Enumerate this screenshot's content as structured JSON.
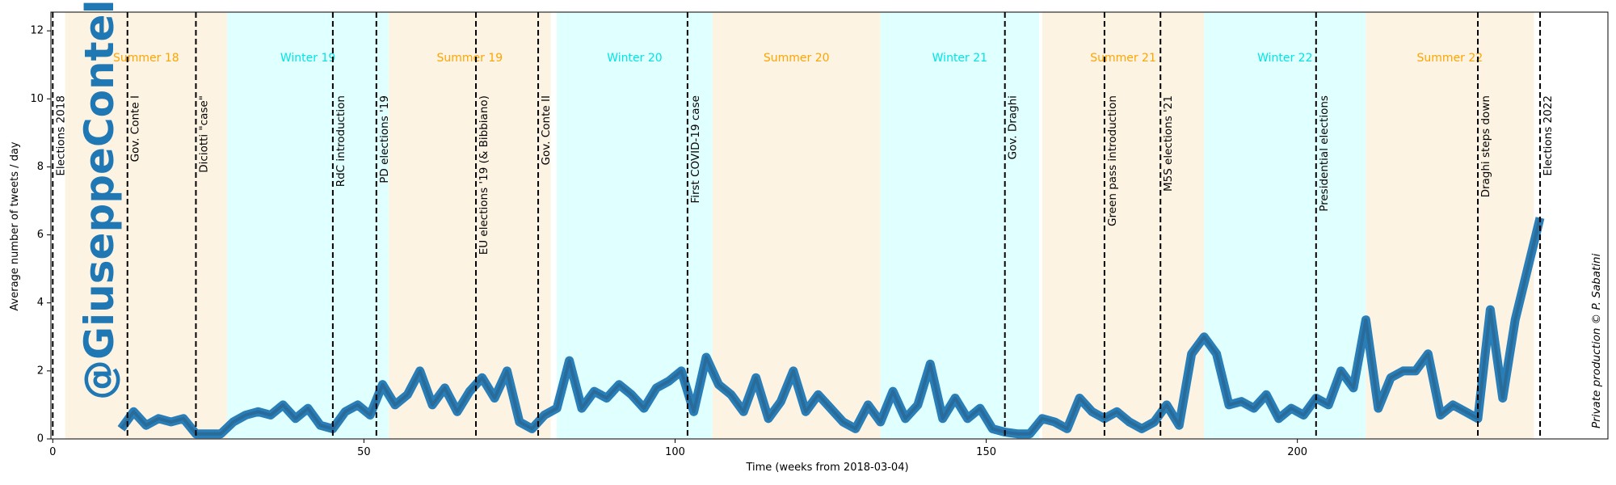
{
  "chart_data": {
    "type": "line",
    "xlabel": "Time (weeks from 2018-03-04)",
    "ylabel": "Average number of tweets / day",
    "watermark": "@GiuseppeConteIT",
    "credit": "Private production © P. Sabatini",
    "color": "#1f77b4",
    "xlim": [
      -0.3,
      249.9
    ],
    "ylim": [
      0,
      12.55
    ],
    "xticks": [
      0,
      50,
      100,
      150,
      200
    ],
    "yticks": [
      0,
      2,
      4,
      6,
      8,
      10,
      12
    ],
    "periods": [
      {
        "label": "Summer 18",
        "start": 2,
        "end": 28,
        "color": "#fdf3e3",
        "text_color": "#ffa500"
      },
      {
        "label": "Winter 19",
        "start": 28,
        "end": 54,
        "color": "#e0ffff",
        "text_color": "#00e5e5"
      },
      {
        "label": "Summer 19",
        "start": 54,
        "end": 80,
        "color": "#fdf3e3",
        "text_color": "#ffa500"
      },
      {
        "label": "Winter 20",
        "start": 81,
        "end": 106,
        "color": "#e0ffff",
        "text_color": "#00e5e5"
      },
      {
        "label": "Summer 20",
        "start": 106,
        "end": 133,
        "color": "#fdf3e3",
        "text_color": "#ffa500"
      },
      {
        "label": "Winter 21",
        "start": 133,
        "end": 158.5,
        "color": "#e0ffff",
        "text_color": "#00e5e5"
      },
      {
        "label": "Summer 21",
        "start": 159,
        "end": 185,
        "color": "#fdf3e3",
        "text_color": "#ffa500"
      },
      {
        "label": "Winter 22",
        "start": 185,
        "end": 211,
        "color": "#e0ffff",
        "text_color": "#00e5e5"
      },
      {
        "label": "Summer 22",
        "start": 211,
        "end": 238,
        "color": "#fdf3e3",
        "text_color": "#ffa500"
      }
    ],
    "events": [
      {
        "label": "Elections 2018",
        "x": 0
      },
      {
        "label": "Gov. Conte I",
        "x": 12
      },
      {
        "label": "Diciotti \"case\"",
        "x": 23
      },
      {
        "label": "RdC introduction",
        "x": 45
      },
      {
        "label": "PD elections '19",
        "x": 52
      },
      {
        "label": "EU elections '19 (& Bibbiano)",
        "x": 68
      },
      {
        "label": "Gov. Conte II",
        "x": 78
      },
      {
        "label": "First COVID-19 case",
        "x": 102
      },
      {
        "label": "Gov. Draghi",
        "x": 153
      },
      {
        "label": "Green pass introduction",
        "x": 169
      },
      {
        "label": "M5S elections '21",
        "x": 178
      },
      {
        "label": "Presidential elections",
        "x": 203
      },
      {
        "label": "Draghi steps down",
        "x": 229
      },
      {
        "label": "Elections 2022",
        "x": 239
      }
    ],
    "x": [
      11,
      13,
      15,
      17,
      19,
      21,
      23,
      25,
      27,
      29,
      31,
      33,
      35,
      37,
      39,
      41,
      43,
      45,
      47,
      49,
      51,
      53,
      55,
      57,
      59,
      61,
      63,
      65,
      67,
      69,
      71,
      73,
      75,
      77,
      79,
      81,
      83,
      85,
      87,
      89,
      91,
      93,
      95,
      97,
      99,
      101,
      103,
      105,
      107,
      109,
      111,
      113,
      115,
      117,
      119,
      121,
      123,
      125,
      127,
      129,
      131,
      133,
      135,
      137,
      139,
      141,
      143,
      145,
      147,
      149,
      151,
      153,
      155,
      157,
      159,
      161,
      163,
      165,
      167,
      169,
      171,
      173,
      175,
      177,
      179,
      181,
      183,
      185,
      187,
      189,
      191,
      193,
      195,
      197,
      199,
      201,
      203,
      205,
      207,
      209,
      211,
      213,
      215,
      217,
      219,
      221,
      223,
      225,
      227,
      229,
      231,
      233,
      235,
      237,
      239
    ],
    "values": [
      0.3,
      0.8,
      0.4,
      0.6,
      0.5,
      0.6,
      0.15,
      0.15,
      0.15,
      0.5,
      0.7,
      0.8,
      0.7,
      1.0,
      0.6,
      0.9,
      0.4,
      0.3,
      0.8,
      1.0,
      0.7,
      1.6,
      1.0,
      1.3,
      2.0,
      1.0,
      1.5,
      0.8,
      1.4,
      1.8,
      1.2,
      2.0,
      0.5,
      0.3,
      0.7,
      0.9,
      2.3,
      0.9,
      1.4,
      1.2,
      1.6,
      1.3,
      0.9,
      1.5,
      1.7,
      2.0,
      0.8,
      2.4,
      1.6,
      1.3,
      0.8,
      1.8,
      0.6,
      1.1,
      2.0,
      0.8,
      1.3,
      0.9,
      0.5,
      0.3,
      1.0,
      0.5,
      1.4,
      0.6,
      1.0,
      2.2,
      0.6,
      1.2,
      0.6,
      0.9,
      0.3,
      0.2,
      0.15,
      0.15,
      0.6,
      0.5,
      0.3,
      1.2,
      0.8,
      0.6,
      0.8,
      0.5,
      0.3,
      0.5,
      1.0,
      0.4,
      2.5,
      3.0,
      2.5,
      1.0,
      1.1,
      0.9,
      1.3,
      0.6,
      0.9,
      0.7,
      1.2,
      1.0,
      2.0,
      1.5,
      3.5,
      0.9,
      1.8,
      2.0,
      2.0,
      2.5,
      0.7,
      1.0,
      0.8,
      0.6,
      3.8,
      1.2,
      3.5,
      5.0,
      6.5
    ]
  }
}
